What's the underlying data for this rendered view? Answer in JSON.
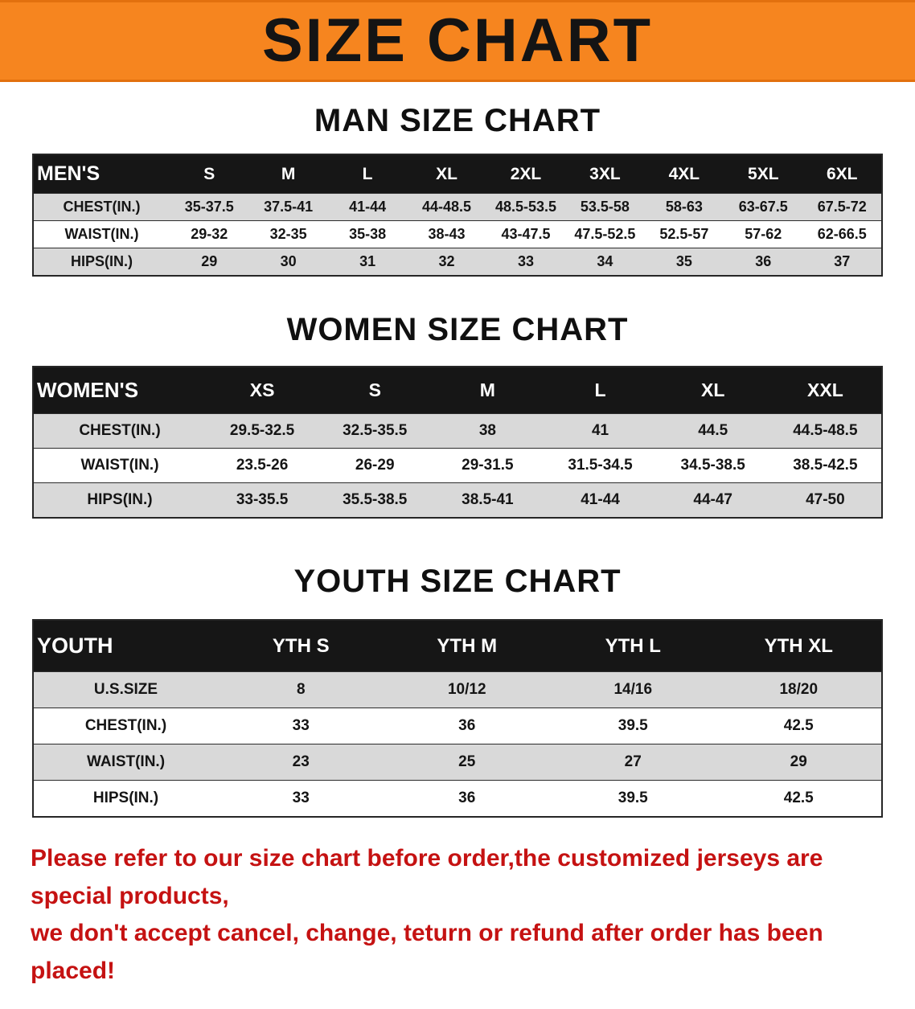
{
  "banner": {
    "title": "SIZE CHART"
  },
  "colors": {
    "banner_bg": "#f6851f",
    "header_bg": "#161616",
    "header_text": "#ffffff",
    "row_shaded": "#d9d9d9",
    "disclaimer_text": "#c51212"
  },
  "sections": [
    {
      "heading": "MAN SIZE CHART",
      "table": {
        "header": [
          "MEN'S",
          "S",
          "M",
          "L",
          "XL",
          "2XL",
          "3XL",
          "4XL",
          "5XL",
          "6XL"
        ],
        "rows": [
          [
            "CHEST(IN.)",
            "35-37.5",
            "37.5-41",
            "41-44",
            "44-48.5",
            "48.5-53.5",
            "53.5-58",
            "58-63",
            "63-67.5",
            "67.5-72"
          ],
          [
            "WAIST(IN.)",
            "29-32",
            "32-35",
            "35-38",
            "38-43",
            "43-47.5",
            "47.5-52.5",
            "52.5-57",
            "57-62",
            "62-66.5"
          ],
          [
            "HIPS(IN.)",
            "29",
            "30",
            "31",
            "32",
            "33",
            "34",
            "35",
            "36",
            "37"
          ]
        ]
      }
    },
    {
      "heading": "WOMEN SIZE CHART",
      "table": {
        "header": [
          "WOMEN'S",
          "XS",
          "S",
          "M",
          "L",
          "XL",
          "XXL"
        ],
        "rows": [
          [
            "CHEST(IN.)",
            "29.5-32.5",
            "32.5-35.5",
            "38",
            "41",
            "44.5",
            "44.5-48.5"
          ],
          [
            "WAIST(IN.)",
            "23.5-26",
            "26-29",
            "29-31.5",
            "31.5-34.5",
            "34.5-38.5",
            "38.5-42.5"
          ],
          [
            "HIPS(IN.)",
            "33-35.5",
            "35.5-38.5",
            "38.5-41",
            "41-44",
            "44-47",
            "47-50"
          ]
        ]
      }
    },
    {
      "heading": "YOUTH SIZE CHART",
      "table": {
        "header": [
          "YOUTH",
          "YTH S",
          "YTH M",
          "YTH L",
          "YTH XL"
        ],
        "rows": [
          [
            "U.S.SIZE",
            "8",
            "10/12",
            "14/16",
            "18/20"
          ],
          [
            "CHEST(IN.)",
            "33",
            "36",
            "39.5",
            "42.5"
          ],
          [
            "WAIST(IN.)",
            "23",
            "25",
            "27",
            "29"
          ],
          [
            "HIPS(IN.)",
            "33",
            "36",
            "39.5",
            "42.5"
          ]
        ]
      }
    }
  ],
  "disclaimer": {
    "line1": "Please refer to our size chart before order,the customized jerseys are special products,",
    "line2": "we don't accept cancel, change, teturn or refund after order has been placed!"
  }
}
